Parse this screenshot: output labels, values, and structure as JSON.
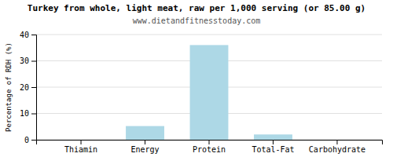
{
  "chart_data": {
    "type": "bar",
    "title": "Turkey from whole, light meat, raw per 1,000 serving (or 85.00 g)",
    "subtitle": "www.dietandfitnesstoday.com",
    "categories": [
      "Thiamin",
      "Energy",
      "Protein",
      "Total-Fat",
      "Carbohydrate"
    ],
    "values": [
      0,
      5.2,
      36,
      2.0,
      0
    ],
    "color": "#add8e6",
    "ylabel": "Percentage of RDH (%)",
    "ylim": [
      0,
      40
    ],
    "yticks": [
      0,
      10,
      20,
      30,
      40
    ],
    "grid": true
  }
}
